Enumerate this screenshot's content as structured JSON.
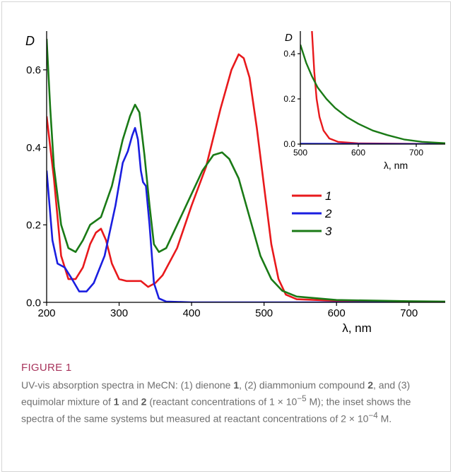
{
  "figure": {
    "label": "FIGURE 1",
    "caption_parts": [
      {
        "t": "UV-vis absorption spectra in MeCN: (1) dienone "
      },
      {
        "t": "1",
        "b": true
      },
      {
        "t": ", (2) diammonium compound "
      },
      {
        "t": "2",
        "b": true
      },
      {
        "t": ", and (3) equimolar mixture of "
      },
      {
        "t": "1",
        "b": true
      },
      {
        "t": " and "
      },
      {
        "t": "2",
        "b": true
      },
      {
        "t": " (reactant concentrations of 1 × 10"
      },
      {
        "t": "−5",
        "sup": true
      },
      {
        "t": " M); the inset shows the spectra of the same systems but measured at reactant concentrations of 2 × 10"
      },
      {
        "t": "−4",
        "sup": true
      },
      {
        "t": " M."
      }
    ]
  },
  "colors": {
    "s1": "#e8191c",
    "s2": "#1a1ee0",
    "s3": "#1a7a16",
    "axis": "#000000"
  },
  "chart_data": [
    {
      "type": "line",
      "panel": "main",
      "ylabel": "D",
      "xlabel": "λ, nm",
      "xlim": [
        200,
        750
      ],
      "ylim": [
        0,
        0.7
      ],
      "xticks": [
        200,
        300,
        400,
        500,
        600,
        700
      ],
      "yticks": [
        0.0,
        0.2,
        0.4,
        0.6
      ],
      "ytick_labels": [
        "0.0",
        "0.2",
        "0.4",
        "0.6"
      ],
      "legend_position": "center-right",
      "series": [
        {
          "name": "1",
          "color": "#e8191c",
          "points": [
            [
              200,
              0.48
            ],
            [
              210,
              0.32
            ],
            [
              220,
              0.12
            ],
            [
              230,
              0.06
            ],
            [
              240,
              0.06
            ],
            [
              250,
              0.09
            ],
            [
              260,
              0.15
            ],
            [
              268,
              0.18
            ],
            [
              275,
              0.19
            ],
            [
              282,
              0.16
            ],
            [
              290,
              0.1
            ],
            [
              300,
              0.06
            ],
            [
              310,
              0.055
            ],
            [
              320,
              0.055
            ],
            [
              330,
              0.055
            ],
            [
              340,
              0.04
            ],
            [
              350,
              0.05
            ],
            [
              360,
              0.07
            ],
            [
              380,
              0.14
            ],
            [
              400,
              0.25
            ],
            [
              420,
              0.35
            ],
            [
              440,
              0.5
            ],
            [
              455,
              0.6
            ],
            [
              465,
              0.64
            ],
            [
              472,
              0.63
            ],
            [
              480,
              0.58
            ],
            [
              490,
              0.45
            ],
            [
              500,
              0.3
            ],
            [
              510,
              0.15
            ],
            [
              520,
              0.06
            ],
            [
              530,
              0.02
            ],
            [
              545,
              0.008
            ],
            [
              600,
              0.004
            ],
            [
              700,
              0.002
            ],
            [
              750,
              0.001
            ]
          ]
        },
        {
          "name": "2",
          "color": "#1a1ee0",
          "points": [
            [
              200,
              0.34
            ],
            [
              208,
              0.16
            ],
            [
              215,
              0.1
            ],
            [
              225,
              0.09
            ],
            [
              235,
              0.06
            ],
            [
              245,
              0.028
            ],
            [
              255,
              0.028
            ],
            [
              265,
              0.05
            ],
            [
              280,
              0.12
            ],
            [
              295,
              0.25
            ],
            [
              305,
              0.36
            ],
            [
              312,
              0.39
            ],
            [
              318,
              0.43
            ],
            [
              322,
              0.45
            ],
            [
              326,
              0.42
            ],
            [
              330,
              0.34
            ],
            [
              333,
              0.31
            ],
            [
              337,
              0.3
            ],
            [
              342,
              0.2
            ],
            [
              348,
              0.05
            ],
            [
              355,
              0.01
            ],
            [
              365,
              0.002
            ],
            [
              400,
              0.0
            ],
            [
              750,
              0.0
            ]
          ]
        },
        {
          "name": "3",
          "color": "#1a7a16",
          "points": [
            [
              200,
              0.68
            ],
            [
              205,
              0.5
            ],
            [
              210,
              0.35
            ],
            [
              220,
              0.2
            ],
            [
              230,
              0.14
            ],
            [
              240,
              0.13
            ],
            [
              250,
              0.16
            ],
            [
              260,
              0.2
            ],
            [
              275,
              0.22
            ],
            [
              290,
              0.3
            ],
            [
              305,
              0.42
            ],
            [
              315,
              0.48
            ],
            [
              322,
              0.51
            ],
            [
              328,
              0.49
            ],
            [
              335,
              0.38
            ],
            [
              342,
              0.25
            ],
            [
              348,
              0.15
            ],
            [
              355,
              0.13
            ],
            [
              365,
              0.14
            ],
            [
              380,
              0.2
            ],
            [
              400,
              0.28
            ],
            [
              415,
              0.34
            ],
            [
              430,
              0.38
            ],
            [
              442,
              0.387
            ],
            [
              452,
              0.37
            ],
            [
              465,
              0.32
            ],
            [
              480,
              0.22
            ],
            [
              495,
              0.12
            ],
            [
              510,
              0.06
            ],
            [
              525,
              0.03
            ],
            [
              545,
              0.015
            ],
            [
              600,
              0.006
            ],
            [
              700,
              0.003
            ],
            [
              750,
              0.002
            ]
          ]
        }
      ]
    },
    {
      "type": "line",
      "panel": "inset",
      "ylabel": "D",
      "xlabel": "λ, nm",
      "xlim": [
        500,
        750
      ],
      "ylim": [
        0,
        0.5
      ],
      "xticks": [
        500,
        600,
        700
      ],
      "yticks": [
        0.0,
        0.2,
        0.4
      ],
      "ytick_labels": [
        "0.0",
        "0.2",
        "0.4"
      ],
      "series": [
        {
          "name": "1",
          "color": "#e8191c",
          "points": [
            [
              520,
              0.5
            ],
            [
              524,
              0.32
            ],
            [
              528,
              0.2
            ],
            [
              533,
              0.12
            ],
            [
              540,
              0.06
            ],
            [
              550,
              0.025
            ],
            [
              565,
              0.01
            ],
            [
              600,
              0.003
            ],
            [
              750,
              0.0
            ]
          ]
        },
        {
          "name": "2",
          "color": "#1a1ee0",
          "points": [
            [
              500,
              0.002
            ],
            [
              750,
              0.0
            ]
          ]
        },
        {
          "name": "3",
          "color": "#1a7a16",
          "points": [
            [
              500,
              0.44
            ],
            [
              510,
              0.36
            ],
            [
              520,
              0.3
            ],
            [
              530,
              0.25
            ],
            [
              545,
              0.2
            ],
            [
              560,
              0.16
            ],
            [
              580,
              0.12
            ],
            [
              600,
              0.09
            ],
            [
              625,
              0.06
            ],
            [
              650,
              0.04
            ],
            [
              680,
              0.02
            ],
            [
              710,
              0.01
            ],
            [
              750,
              0.004
            ]
          ]
        }
      ]
    }
  ]
}
